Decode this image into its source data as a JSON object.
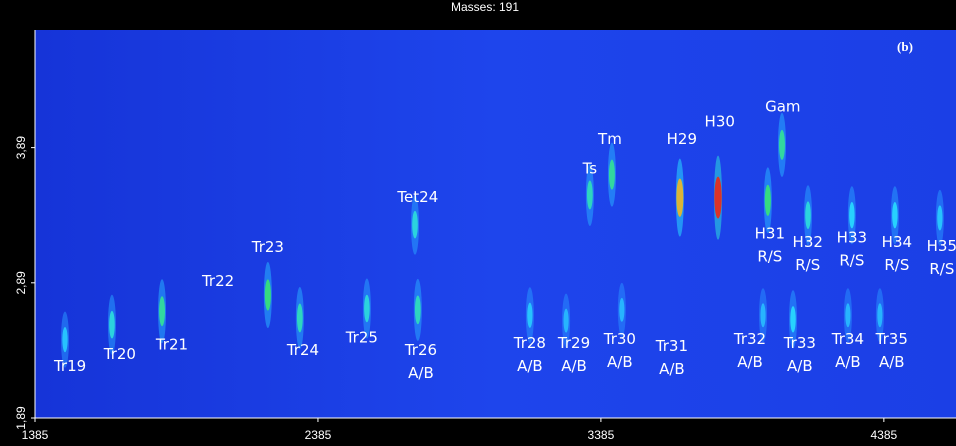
{
  "chart_data": {
    "type": "contour",
    "title": "Masses: 191",
    "panel_label": "(b)",
    "xlim": [
      1385,
      4640
    ],
    "ylim": [
      1.89,
      4.76
    ],
    "xticks": [
      1385,
      2385,
      3385,
      4385
    ],
    "yticks": [
      {
        "value": 1.89,
        "label": "1,89"
      },
      {
        "value": 2.89,
        "label": "2,89"
      },
      {
        "value": 3.89,
        "label": "3,89"
      }
    ],
    "peaks": [
      {
        "x": 1491,
        "y": 2.47,
        "intensity": 30
      },
      {
        "x": 1657,
        "y": 2.58,
        "intensity": 40
      },
      {
        "x": 1834,
        "y": 2.68,
        "intensity": 50
      },
      {
        "x": 2208,
        "y": 2.8,
        "intensity": 55
      },
      {
        "x": 2321,
        "y": 2.63,
        "intensity": 45
      },
      {
        "x": 2558,
        "y": 2.7,
        "intensity": 40
      },
      {
        "x": 2738,
        "y": 2.69,
        "intensity": 45
      },
      {
        "x": 2728,
        "y": 3.32,
        "intensity": 40
      },
      {
        "x": 3134,
        "y": 2.65,
        "intensity": 30
      },
      {
        "x": 3262,
        "y": 2.61,
        "intensity": 25
      },
      {
        "x": 3346,
        "y": 3.54,
        "intensity": 45
      },
      {
        "x": 3424,
        "y": 3.69,
        "intensity": 50
      },
      {
        "x": 3459,
        "y": 2.69,
        "intensity": 25
      },
      {
        "x": 3664,
        "y": 3.52,
        "intensity": 85
      },
      {
        "x": 3799,
        "y": 3.52,
        "intensity": 100
      },
      {
        "x": 3975,
        "y": 3.5,
        "intensity": 55
      },
      {
        "x": 4025,
        "y": 3.91,
        "intensity": 50
      },
      {
        "x": 4117,
        "y": 3.39,
        "intensity": 40
      },
      {
        "x": 3958,
        "y": 2.65,
        "intensity": 25
      },
      {
        "x": 4064,
        "y": 2.62,
        "intensity": 35
      },
      {
        "x": 4272,
        "y": 3.39,
        "intensity": 35
      },
      {
        "x": 4258,
        "y": 2.65,
        "intensity": 25
      },
      {
        "x": 4424,
        "y": 3.39,
        "intensity": 35
      },
      {
        "x": 4371,
        "y": 2.65,
        "intensity": 25
      },
      {
        "x": 4583,
        "y": 3.37,
        "intensity": 30
      }
    ],
    "annotations": [
      {
        "lines": [
          "Tr19"
        ],
        "x": 1509,
        "y": 2.27
      },
      {
        "lines": [
          "Tr20"
        ],
        "x": 1685,
        "y": 2.36
      },
      {
        "lines": [
          "Tr21"
        ],
        "x": 1869,
        "y": 2.43
      },
      {
        "lines": [
          "Tr22"
        ],
        "x": 2032,
        "y": 2.9
      },
      {
        "lines": [
          "Tr23"
        ],
        "x": 2208,
        "y": 3.15
      },
      {
        "lines": [
          "Tr24"
        ],
        "x": 2332,
        "y": 2.39
      },
      {
        "lines": [
          "Tr25"
        ],
        "x": 2540,
        "y": 2.48
      },
      {
        "lines": [
          "Tet24"
        ],
        "x": 2738,
        "y": 3.52
      },
      {
        "lines": [
          "Tr26",
          "A/B"
        ],
        "x": 2749,
        "y": 2.39
      },
      {
        "lines": [
          "Tr28",
          "A/B"
        ],
        "x": 3134,
        "y": 2.44
      },
      {
        "lines": [
          "Tr29",
          "A/B"
        ],
        "x": 3290,
        "y": 2.44
      },
      {
        "lines": [
          "Tr30",
          "A/B"
        ],
        "x": 3452,
        "y": 2.47
      },
      {
        "lines": [
          "Ts"
        ],
        "x": 3346,
        "y": 3.73
      },
      {
        "lines": [
          "Tm"
        ],
        "x": 3417,
        "y": 3.95
      },
      {
        "lines": [
          "Tr31",
          "A/B"
        ],
        "x": 3636,
        "y": 2.42
      },
      {
        "lines": [
          "H29"
        ],
        "x": 3671,
        "y": 3.95
      },
      {
        "lines": [
          "H30"
        ],
        "x": 3805,
        "y": 4.08
      },
      {
        "lines": [
          "Gam"
        ],
        "x": 4028,
        "y": 4.19
      },
      {
        "lines": [
          "H31",
          "R/S"
        ],
        "x": 3982,
        "y": 3.25
      },
      {
        "lines": [
          "H32",
          "R/S"
        ],
        "x": 4116,
        "y": 3.19
      },
      {
        "lines": [
          "Tr32",
          "A/B"
        ],
        "x": 3912,
        "y": 2.47
      },
      {
        "lines": [
          "Tr33",
          "A/B"
        ],
        "x": 4088,
        "y": 2.44
      },
      {
        "lines": [
          "H33",
          "R/S"
        ],
        "x": 4272,
        "y": 3.22
      },
      {
        "lines": [
          "Tr34",
          "A/B"
        ],
        "x": 4258,
        "y": 2.47
      },
      {
        "lines": [
          "Tr35",
          "A/B"
        ],
        "x": 4413,
        "y": 2.47
      },
      {
        "lines": [
          "H34",
          "R/S"
        ],
        "x": 4431,
        "y": 3.19
      },
      {
        "lines": [
          "H35",
          "R/S"
        ],
        "x": 4590,
        "y": 3.16
      }
    ]
  }
}
